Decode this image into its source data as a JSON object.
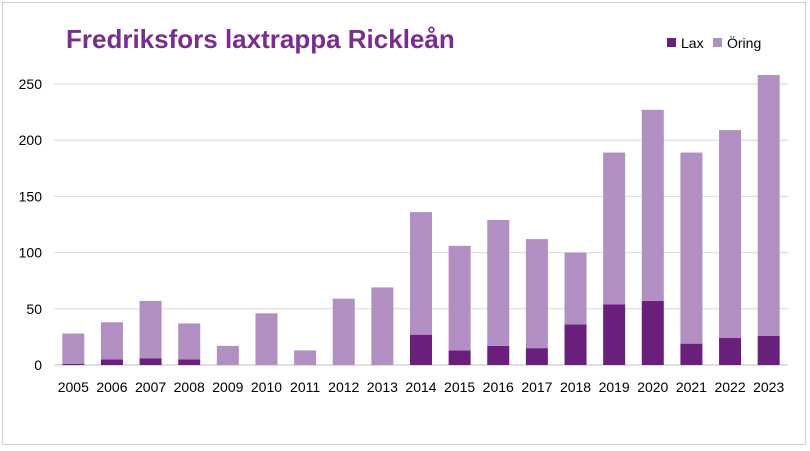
{
  "chart_data": {
    "type": "bar",
    "stacked": true,
    "title": "Fredriksfors laxtrappa Rickleån",
    "xlabel": "",
    "ylabel": "",
    "ylim": [
      0,
      250
    ],
    "yticks": [
      0,
      50,
      100,
      150,
      200,
      250
    ],
    "grid": true,
    "legend_position": "top-right",
    "categories": [
      "2005",
      "2006",
      "2007",
      "2008",
      "2009",
      "2010",
      "2011",
      "2012",
      "2013",
      "2014",
      "2015",
      "2016",
      "2017",
      "2018",
      "2019",
      "2020",
      "2021",
      "2022",
      "2023"
    ],
    "series": [
      {
        "name": "Lax",
        "color": "#6a1f7d",
        "values": [
          1,
          5,
          6,
          5,
          0,
          0,
          0,
          0,
          0,
          27,
          13,
          17,
          15,
          36,
          54,
          57,
          19,
          24,
          26
        ]
      },
      {
        "name": "Öring",
        "color": "#b28fc2",
        "values": [
          27,
          33,
          51,
          32,
          17,
          46,
          13,
          59,
          69,
          109,
          93,
          112,
          97,
          64,
          135,
          170,
          170,
          185,
          232
        ]
      }
    ]
  },
  "colors": {
    "title": "#7b2c8f",
    "gridline": "#d9d9d9",
    "axis": "#bfbfbf"
  }
}
